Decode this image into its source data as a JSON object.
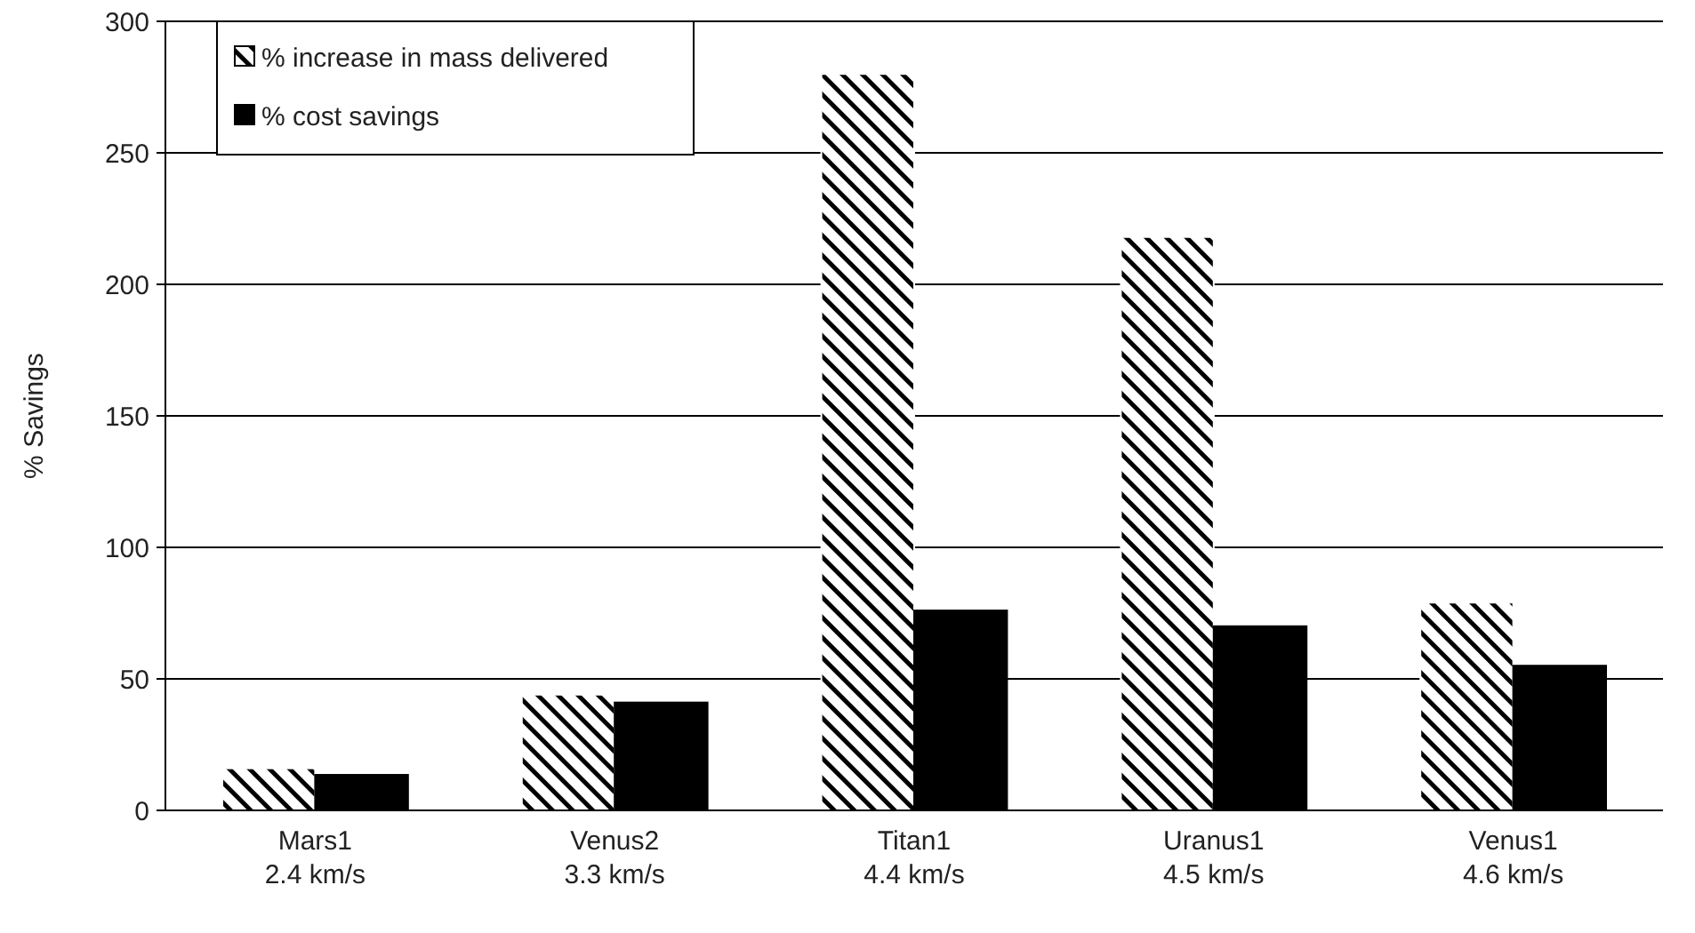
{
  "chart_data": {
    "type": "bar",
    "ylabel": "% Savings",
    "categories": [
      "Mars1\n2.4 km/s",
      "Venus2\n3.3 km/s",
      "Titan1\n4.4 km/s",
      "Uranus1\n4.5 km/s",
      "Venus1\n4.6 km/s"
    ],
    "series": [
      {
        "name": "% increase in mass delivered",
        "color": "#ffffff",
        "values": [
          16,
          44,
          280,
          218,
          79
        ]
      },
      {
        "name": "% cost savings",
        "color": "#000000",
        "values": [
          13.5,
          41,
          76,
          70,
          55
        ]
      }
    ],
    "ylim": [
      0,
      300
    ],
    "yticks": [
      0,
      50,
      100,
      150,
      200,
      250,
      300
    ],
    "grid": "y",
    "legend": "top left"
  }
}
